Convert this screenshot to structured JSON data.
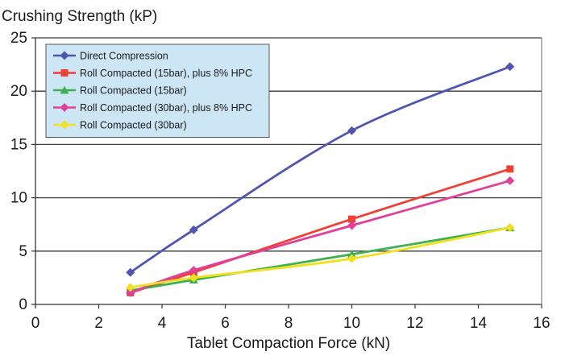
{
  "chart_data": {
    "type": "line",
    "title": "Crushing Strength (kP)",
    "xlabel": "Tablet Compaction Force (kN)",
    "ylabel": "",
    "xlim": [
      0,
      16
    ],
    "ylim": [
      0,
      25
    ],
    "xticks": [
      0,
      2,
      4,
      6,
      8,
      10,
      12,
      14,
      16
    ],
    "yticks": [
      0,
      5,
      10,
      15,
      20,
      25
    ],
    "grid": "horizontal",
    "legend_position": "top-left",
    "series": [
      {
        "name": "Direct Compression",
        "color": "#5055b0",
        "marker": "diamond",
        "points": [
          [
            3,
            3.0
          ],
          [
            5,
            7.0
          ],
          [
            10,
            16.3
          ],
          [
            15,
            22.3
          ]
        ]
      },
      {
        "name": "Roll Compacted (15bar), plus 8% HPC",
        "color": "#ee4035",
        "marker": "square",
        "points": [
          [
            3,
            1.1
          ],
          [
            5,
            3.0
          ],
          [
            10,
            8.0
          ],
          [
            15,
            12.7
          ]
        ]
      },
      {
        "name": "Roll Compacted (15bar)",
        "color": "#3db050",
        "marker": "triangle",
        "points": [
          [
            3,
            1.3
          ],
          [
            5,
            2.3
          ],
          [
            10,
            4.7
          ],
          [
            15,
            7.2
          ]
        ]
      },
      {
        "name": "Roll Compacted (30bar), plus 8% HPC",
        "color": "#e0409a",
        "marker": "diamond",
        "points": [
          [
            3,
            1.1
          ],
          [
            5,
            3.2
          ],
          [
            10,
            7.4
          ],
          [
            15,
            11.6
          ]
        ]
      },
      {
        "name": "Roll Compacted (30bar)",
        "color": "#f0e020",
        "marker": "diamond",
        "points": [
          [
            3,
            1.6
          ],
          [
            5,
            2.5
          ],
          [
            10,
            4.3
          ],
          [
            15,
            7.2
          ]
        ]
      }
    ],
    "legend_background": "#cce6f5"
  }
}
